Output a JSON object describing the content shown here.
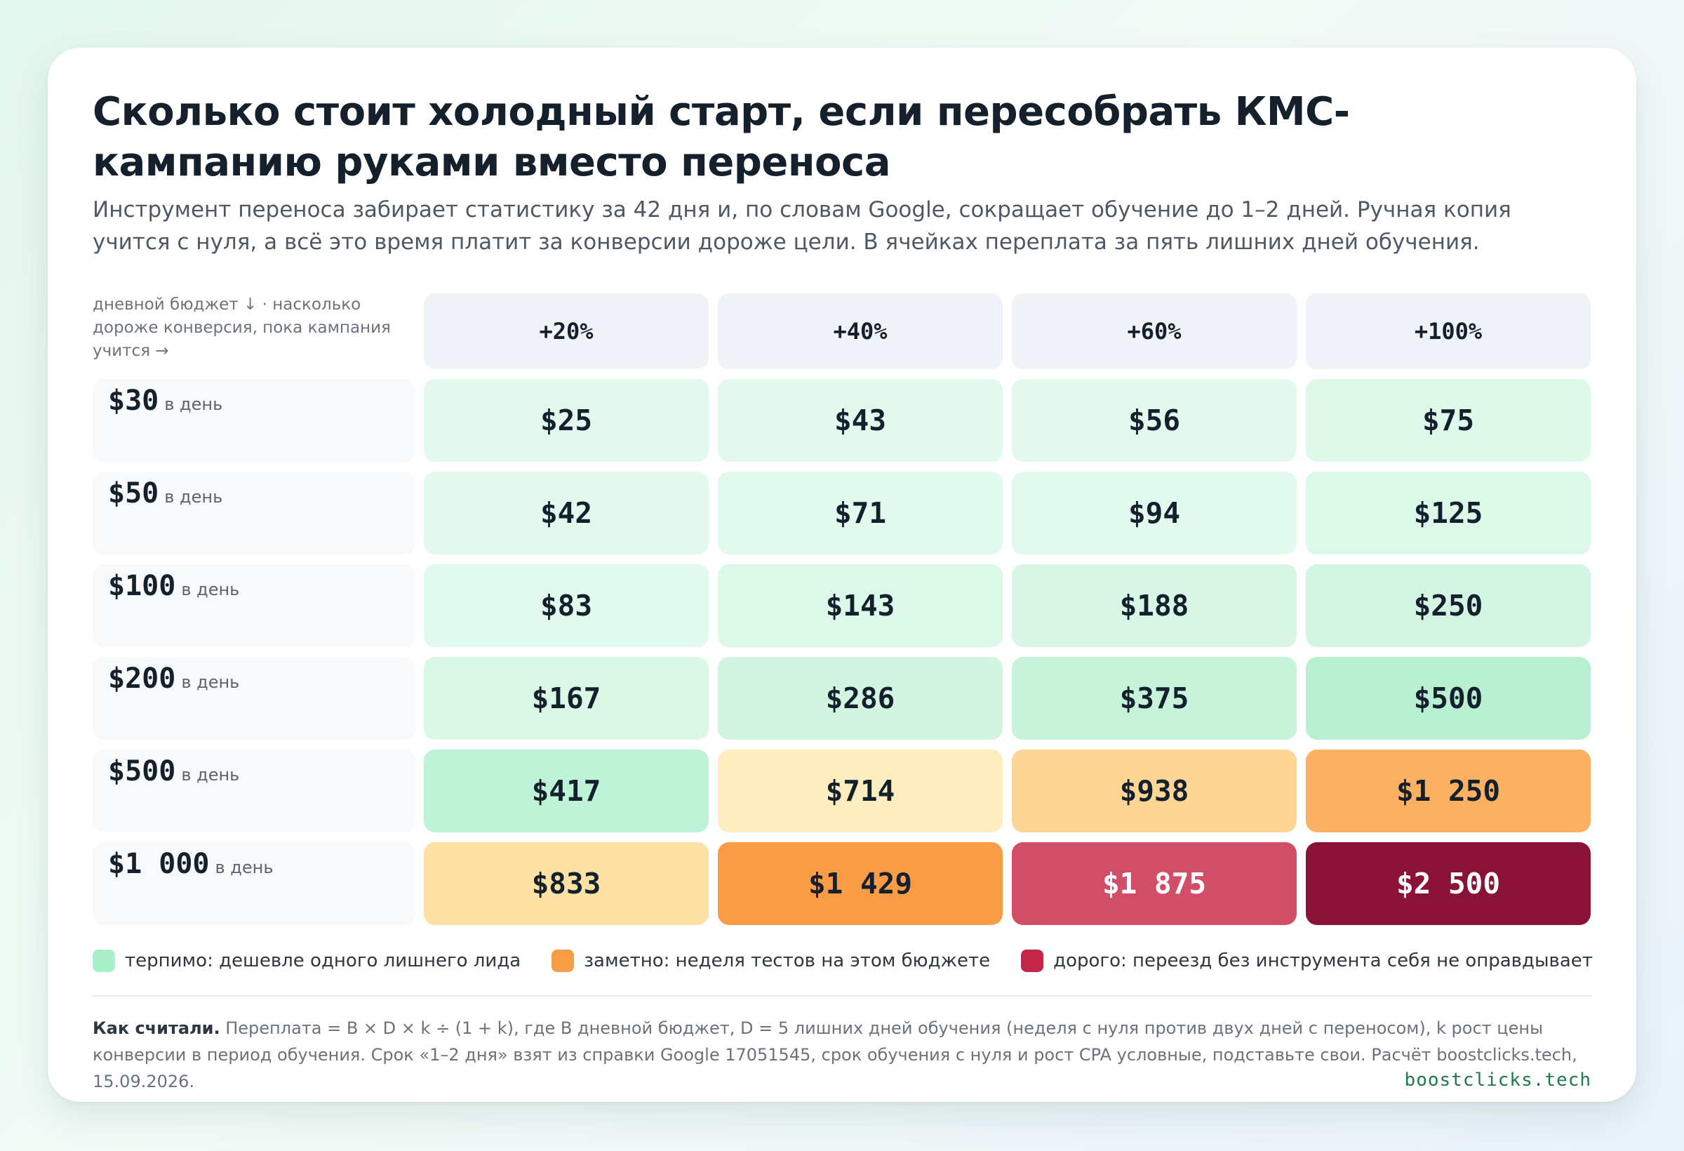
{
  "title": "Сколько стоит холодный старт, если пересобрать КМС-кампанию руками вместо переноса",
  "subtitle": "Инструмент переноса забирает статистику за 42 дня и, по словам Google, сокращает обучение до 1–2 дней. Ручная копия учится с нуля, а всё это время платит за конверсии дороже цели. В ячейках переплата за пять лишних дней обучения.",
  "corner_label": "дневной бюджет ↓ · насколько дороже конверсия, пока кампания учится →",
  "chart_data": {
    "type": "table",
    "columns": [
      "+20%",
      "+40%",
      "+60%",
      "+100%"
    ],
    "row_unit": "в день",
    "rows": [
      {
        "budget": "$30",
        "cells": [
          {
            "label": "$25",
            "value": 25,
            "bg": "#e4f9ee",
            "fg": "#14202c"
          },
          {
            "label": "$43",
            "value": 43,
            "bg": "#e4f9ee",
            "fg": "#14202c"
          },
          {
            "label": "$56",
            "value": 56,
            "bg": "#e4f9ee",
            "fg": "#14202c"
          },
          {
            "label": "$75",
            "value": 75,
            "bg": "#def8ea",
            "fg": "#14202c"
          }
        ]
      },
      {
        "budget": "$50",
        "cells": [
          {
            "label": "$42",
            "value": 42,
            "bg": "#e4f9ee",
            "fg": "#14202c"
          },
          {
            "label": "$71",
            "value": 71,
            "bg": "#e2f9ed",
            "fg": "#14202c"
          },
          {
            "label": "$94",
            "value": 94,
            "bg": "#e2f9ed",
            "fg": "#14202c"
          },
          {
            "label": "$125",
            "value": 125,
            "bg": "#dcf8e8",
            "fg": "#14202c"
          }
        ]
      },
      {
        "budget": "$100",
        "cells": [
          {
            "label": "$83",
            "value": 83,
            "bg": "#e2f9ed",
            "fg": "#14202c"
          },
          {
            "label": "$143",
            "value": 143,
            "bg": "#dcf8e8",
            "fg": "#14202c"
          },
          {
            "label": "$188",
            "value": 188,
            "bg": "#d8f6e5",
            "fg": "#14202c"
          },
          {
            "label": "$250",
            "value": 250,
            "bg": "#d3f5e2",
            "fg": "#14202c"
          }
        ]
      },
      {
        "budget": "$200",
        "cells": [
          {
            "label": "$167",
            "value": 167,
            "bg": "#dbf8e7",
            "fg": "#14202c"
          },
          {
            "label": "$286",
            "value": 286,
            "bg": "#d1f5e0",
            "fg": "#14202c"
          },
          {
            "label": "$375",
            "value": 375,
            "bg": "#c6f3da",
            "fg": "#14202c"
          },
          {
            "label": "$500",
            "value": 500,
            "bg": "#b8f0d1",
            "fg": "#14202c"
          }
        ]
      },
      {
        "budget": "$500",
        "cells": [
          {
            "label": "$417",
            "value": 417,
            "bg": "#bef3d7",
            "fg": "#14202c"
          },
          {
            "label": "$714",
            "value": 714,
            "bg": "#fdeec0",
            "fg": "#14202c"
          },
          {
            "label": "$938",
            "value": 938,
            "bg": "#fdd595",
            "fg": "#14202c"
          },
          {
            "label": "$1 250",
            "value": 1250,
            "bg": "#fbb062",
            "fg": "#14202c"
          }
        ]
      },
      {
        "budget": "$1 000",
        "cells": [
          {
            "label": "$833",
            "value": 833,
            "bg": "#fde1a4",
            "fg": "#14202c"
          },
          {
            "label": "$1 429",
            "value": 1429,
            "bg": "#f99c46",
            "fg": "#14202c"
          },
          {
            "label": "$1 875",
            "value": 1875,
            "bg": "#d14e66",
            "fg": "#ffffff"
          },
          {
            "label": "$2 500",
            "value": 2500,
            "bg": "#8a1236",
            "fg": "#ffffff"
          }
        ]
      }
    ]
  },
  "legend": [
    {
      "label": "терпимо: дешевле одного лишнего лида",
      "color": "#a9efca"
    },
    {
      "label": "заметно: неделя тестов на этом бюджете",
      "color": "#f99c46"
    },
    {
      "label": "дорого: переезд без инструмента себя не оправдывает",
      "color": "#c4264a"
    }
  ],
  "method": {
    "heading": "Как считали.",
    "text": " Переплата = B × D × k ÷ (1 + k), где B дневной бюджет, D = 5 лишних дней обучения (неделя с нуля против двух дней с переносом), k рост цены конверсии в период обучения. Срок «1–2 дня» взят из справки Google 17051545, срок обучения с нуля и рост CPA условные, подставьте свои. Расчёт boostclicks.tech, 15.09.2026."
  },
  "brand": "boostclicks.tech"
}
